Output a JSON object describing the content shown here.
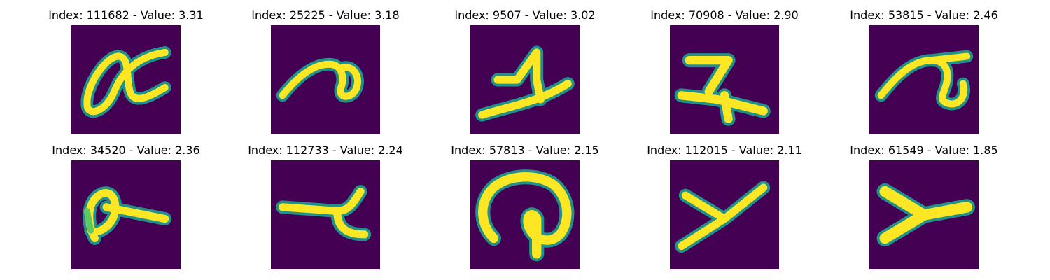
{
  "colors": {
    "background": "#440154",
    "stroke_core": "#fde725",
    "stroke_edge": "#21918c",
    "stroke_mid": "#5ec962"
  },
  "panels": [
    {
      "title": "Index: 111682 - Value: 3.31",
      "glyph": "alpha-like"
    },
    {
      "title": "Index: 25225 - Value: 3.18",
      "glyph": "curled-stroke"
    },
    {
      "title": "Index: 9507 - Value: 3.02",
      "glyph": "one-with-base"
    },
    {
      "title": "Index: 70908 - Value: 2.90",
      "glyph": "seven-like"
    },
    {
      "title": "Index: 53815 - Value: 2.46",
      "glyph": "tau-like"
    },
    {
      "title": "Index: 34520 - Value: 2.36",
      "glyph": "loop-with-tail"
    },
    {
      "title": "Index: 112733 - Value: 2.24",
      "glyph": "lambda-like"
    },
    {
      "title": "Index: 57813 - Value: 2.15",
      "glyph": "circle-with-stem"
    },
    {
      "title": "Index: 112015 - Value: 2.11",
      "glyph": "y-like"
    },
    {
      "title": "Index: 61549 - Value: 1.85",
      "glyph": "y-like-bold"
    }
  ]
}
